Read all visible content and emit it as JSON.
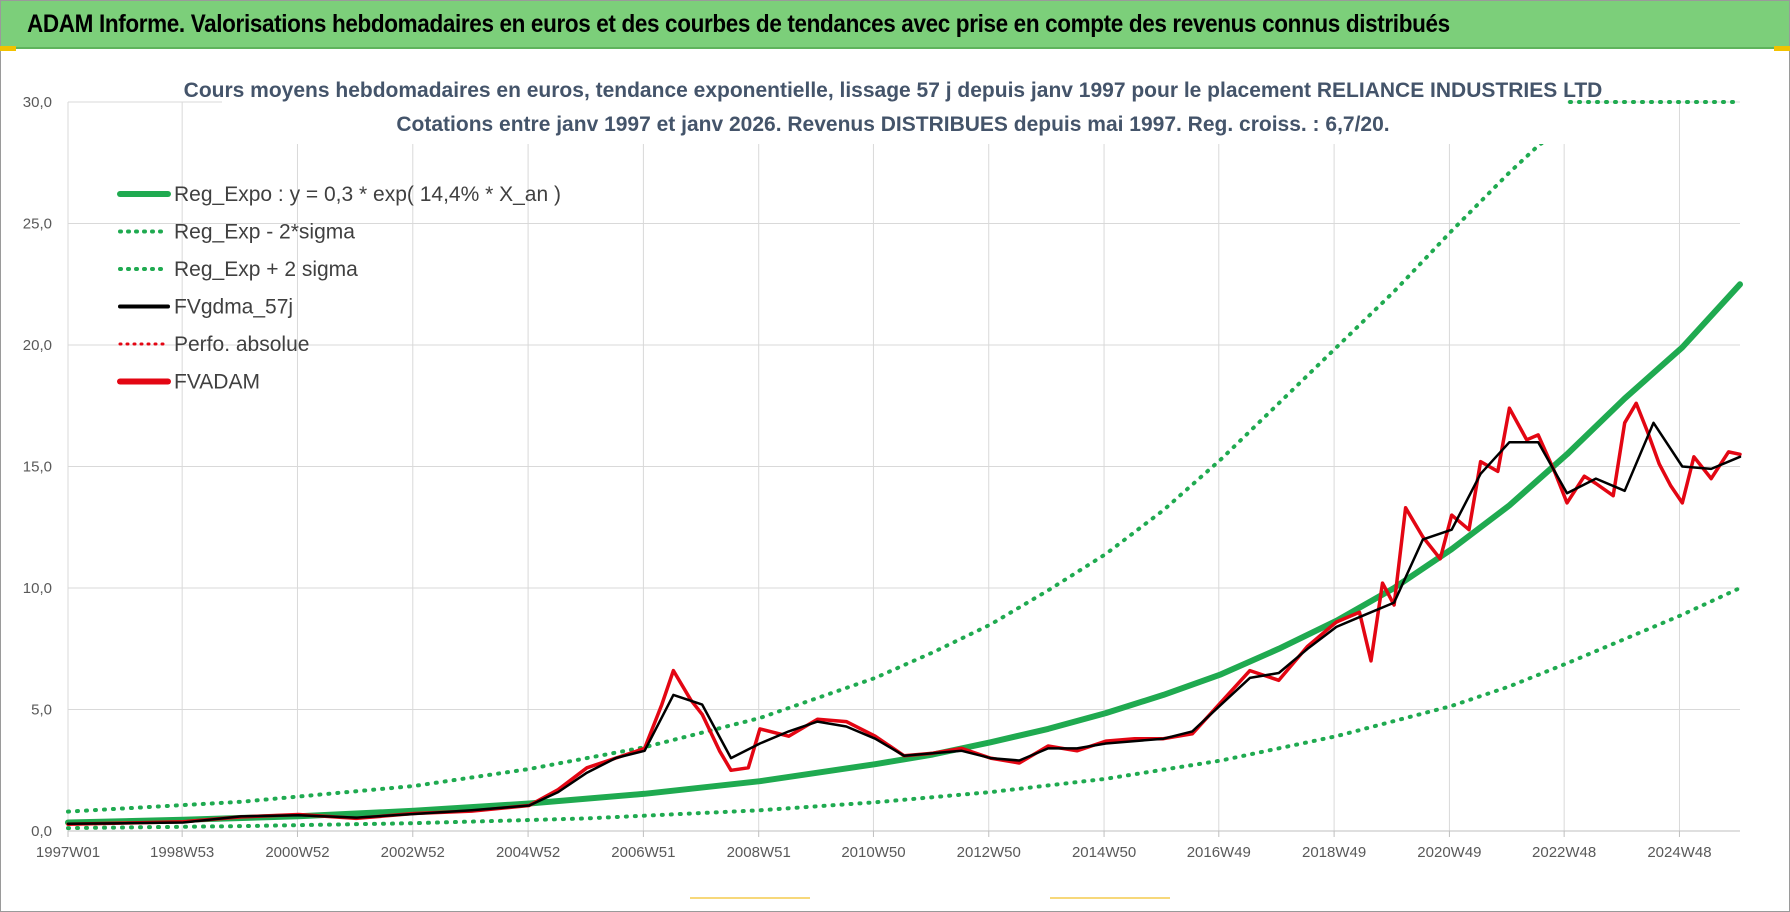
{
  "header": {
    "title": "ADAM Informe. Valorisations hebdomadaires en euros et des courbes de tendances avec prise en compte des revenus connus distribués"
  },
  "colors": {
    "banner": "#7ccf7a",
    "reg_expo": "#1faa50",
    "sigma": "#1faa50",
    "fvgdma": "#000000",
    "fvadam": "#e30613",
    "perfo": "#e30613",
    "grid": "#d9d9d9"
  },
  "chart_data": {
    "type": "line",
    "title_line1": "Cours moyens hebdomadaires en euros, tendance exponentielle, lissage 57 j depuis janv 1997  pour le  placement RELIANCE INDUSTRIES LTD",
    "title_line2": "Cotations entre janv 1997 et janv 2026. Revenus DISTRIBUES depuis mai 1997.  Reg. croiss. : 6,7/20.",
    "xlabel": "",
    "ylabel": "",
    "xlim": [
      1997.0,
      2026.0
    ],
    "ylim": [
      0,
      30
    ],
    "y_ticks": [
      "0,0",
      "5,0",
      "10,0",
      "15,0",
      "20,0",
      "25,0",
      "30,0"
    ],
    "y_tick_values": [
      0,
      5,
      10,
      15,
      20,
      25,
      30
    ],
    "x_ticks": [
      "1997W01",
      "1998W53",
      "2000W52",
      "2002W52",
      "2004W52",
      "2006W51",
      "2008W51",
      "2010W50",
      "2012W50",
      "2014W50",
      "2016W49",
      "2018W49",
      "2020W49",
      "2022W48",
      "2024W48"
    ],
    "x_tick_values": [
      1997.0,
      1998.98,
      2000.98,
      2002.98,
      2004.98,
      2006.98,
      2008.98,
      2010.97,
      2012.97,
      2014.97,
      2016.96,
      2018.96,
      2020.96,
      2022.95,
      2024.95
    ],
    "grid": true,
    "legend_position": "top-left",
    "legend": [
      {
        "label": "Reg_Expo : y = 0,3 * exp( 14,4% *  X_an )",
        "style": "solid-thick",
        "color": "#1faa50"
      },
      {
        "label": "Reg_Exp - 2*sigma",
        "style": "dotted",
        "color": "#1faa50"
      },
      {
        "label": "Reg_Exp + 2 sigma",
        "style": "dotted",
        "color": "#1faa50"
      },
      {
        "label": "FVgdma_57j",
        "style": "solid",
        "color": "#000000"
      },
      {
        "label": "Perfo. absolue",
        "style": "dotted",
        "color": "#e30613"
      },
      {
        "label": "FVADAM",
        "style": "solid-thick",
        "color": "#e30613"
      }
    ],
    "series": [
      {
        "name": "Reg_Expo : y = 0,3 * exp( 14,4% *  X_an )",
        "x": [
          1997.0,
          1999.0,
          2001.0,
          2003.0,
          2005.0,
          2007.0,
          2009.0,
          2011.0,
          2012.0,
          2013.0,
          2014.0,
          2015.0,
          2016.0,
          2017.0,
          2018.0,
          2019.0,
          2020.0,
          2021.0,
          2022.0,
          2023.0,
          2024.0,
          2025.0,
          2026.0
        ],
        "values": [
          0.35,
          0.46,
          0.61,
          0.83,
          1.13,
          1.53,
          2.05,
          2.75,
          3.15,
          3.65,
          4.2,
          4.85,
          5.6,
          6.45,
          7.5,
          8.65,
          10.0,
          11.6,
          13.4,
          15.5,
          17.8,
          19.9,
          22.5
        ]
      },
      {
        "name": "Reg_Exp - 2*sigma",
        "x": [
          1997.0,
          2000.0,
          2003.0,
          2006.0,
          2009.0,
          2011.0,
          2013.0,
          2015.0,
          2017.0,
          2019.0,
          2021.0,
          2022.0,
          2023.0,
          2024.0,
          2025.0,
          2026.0
        ],
        "values": [
          0.12,
          0.2,
          0.32,
          0.52,
          0.85,
          1.18,
          1.6,
          2.15,
          2.9,
          3.9,
          5.15,
          5.95,
          6.9,
          7.9,
          8.9,
          10.0
        ]
      },
      {
        "name": "Reg_Exp + 2 sigma",
        "x": [
          1997.0,
          2000.0,
          2003.0,
          2005.0,
          2007.0,
          2009.0,
          2011.0,
          2012.0,
          2013.0,
          2014.0,
          2015.0,
          2016.0,
          2017.0,
          2018.0,
          2019.0,
          2020.0,
          2021.0,
          2022.0,
          2022.5,
          2022.85
        ],
        "values": [
          0.8,
          1.2,
          1.85,
          2.55,
          3.45,
          4.65,
          6.3,
          7.35,
          8.5,
          9.9,
          11.4,
          13.2,
          15.3,
          17.6,
          19.9,
          22.2,
          24.7,
          27.1,
          28.2,
          28.8
        ]
      },
      {
        "name": "FVgdma_57j",
        "x": [
          1997.0,
          1998.0,
          1999.0,
          2000.0,
          2001.0,
          2002.0,
          2003.0,
          2004.0,
          2005.0,
          2005.5,
          2006.0,
          2006.5,
          2007.0,
          2007.5,
          2008.0,
          2008.5,
          2009.0,
          2009.5,
          2010.0,
          2010.5,
          2011.0,
          2011.5,
          2012.0,
          2012.5,
          2013.0,
          2013.5,
          2014.0,
          2014.5,
          2015.0,
          2015.5,
          2016.0,
          2016.5,
          2017.0,
          2017.5,
          2018.0,
          2018.5,
          2019.0,
          2019.5,
          2020.0,
          2020.5,
          2021.0,
          2021.5,
          2022.0,
          2022.5,
          2023.0,
          2023.5,
          2024.0,
          2024.5,
          2025.0,
          2025.5,
          2026.0
        ],
        "values": [
          0.3,
          0.32,
          0.35,
          0.6,
          0.65,
          0.55,
          0.7,
          0.85,
          1.05,
          1.6,
          2.4,
          3.0,
          3.3,
          5.6,
          5.2,
          3.0,
          3.6,
          4.1,
          4.5,
          4.3,
          3.8,
          3.1,
          3.2,
          3.3,
          3.0,
          2.9,
          3.4,
          3.4,
          3.6,
          3.7,
          3.8,
          4.1,
          5.2,
          6.3,
          6.5,
          7.5,
          8.4,
          8.9,
          9.4,
          12.0,
          12.4,
          14.7,
          16.0,
          16.0,
          13.9,
          14.5,
          14.0,
          16.8,
          15.0,
          14.9,
          15.4
        ]
      },
      {
        "name": "FVADAM",
        "x": [
          1997.0,
          1998.0,
          1999.0,
          2000.0,
          2001.0,
          2002.0,
          2003.0,
          2004.0,
          2005.0,
          2005.5,
          2006.0,
          2006.5,
          2007.0,
          2007.3,
          2007.5,
          2007.8,
          2008.0,
          2008.3,
          2008.5,
          2008.8,
          2009.0,
          2009.5,
          2010.0,
          2010.5,
          2011.0,
          2011.5,
          2012.0,
          2012.5,
          2013.0,
          2013.5,
          2014.0,
          2014.5,
          2015.0,
          2015.5,
          2016.0,
          2016.5,
          2017.0,
          2017.5,
          2018.0,
          2018.5,
          2019.0,
          2019.4,
          2019.6,
          2019.8,
          2020.0,
          2020.2,
          2020.5,
          2020.8,
          2021.0,
          2021.3,
          2021.5,
          2021.8,
          2022.0,
          2022.3,
          2022.5,
          2022.8,
          2023.0,
          2023.3,
          2023.5,
          2023.8,
          2024.0,
          2024.2,
          2024.4,
          2024.6,
          2024.8,
          2025.0,
          2025.2,
          2025.5,
          2025.8,
          2026.0
        ],
        "values": [
          0.28,
          0.33,
          0.38,
          0.58,
          0.68,
          0.52,
          0.72,
          0.82,
          1.05,
          1.7,
          2.6,
          3.0,
          3.4,
          5.2,
          6.6,
          5.4,
          4.8,
          3.3,
          2.5,
          2.6,
          4.2,
          3.9,
          4.6,
          4.5,
          3.9,
          3.1,
          3.2,
          3.4,
          3.0,
          2.8,
          3.5,
          3.3,
          3.7,
          3.8,
          3.8,
          4.0,
          5.3,
          6.6,
          6.2,
          7.6,
          8.6,
          9.0,
          7.0,
          10.2,
          9.3,
          13.3,
          12.1,
          11.2,
          13.0,
          12.4,
          15.2,
          14.8,
          17.4,
          16.1,
          16.3,
          14.7,
          13.5,
          14.6,
          14.3,
          13.8,
          16.8,
          17.6,
          16.4,
          15.1,
          14.2,
          13.5,
          15.4,
          14.5,
          15.6,
          15.5
        ]
      }
    ]
  }
}
